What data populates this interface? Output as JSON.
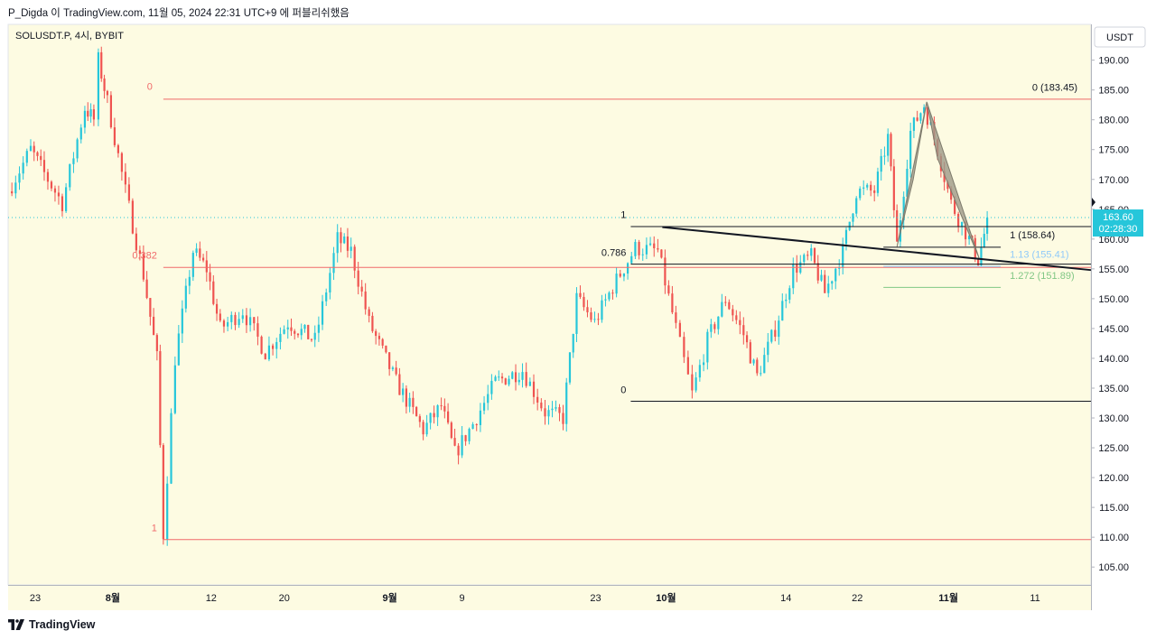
{
  "header": {
    "text": "P_Digda 이 TradingView.com, 11월 05, 2024 22:31 UTC+9 에 퍼블리쉬했음"
  },
  "footer": {
    "brand": "TradingView",
    "logo_icon": "tradingview-logo-icon"
  },
  "colors": {
    "background": "#fdfbe2",
    "up": "#26c6da",
    "down": "#ef5350",
    "fib_red": "#f06a6a",
    "fib_black": "#131722",
    "price_badge": "#26c6da",
    "harmonic_fill": "#9e9a88",
    "blue_fib": "#90caf9",
    "green_fib": "#81c784"
  },
  "chart_data": {
    "type": "candlestick",
    "symbol": "SOLUSDT.P, 4시, BYBIT",
    "currency": "USDT",
    "y_range": [
      102.0,
      196.0
    ],
    "y_ticks": [
      190,
      185,
      180,
      175,
      170,
      165,
      160,
      155,
      150,
      145,
      140,
      135,
      130,
      125,
      120,
      115,
      110,
      105
    ],
    "y_tick_labels": [
      "190.00",
      "185.00",
      "180.00",
      "175.00",
      "170.00",
      "165.00",
      "160.00",
      "155.00",
      "150.00",
      "145.00",
      "140.00",
      "135.00",
      "130.00",
      "125.00",
      "120.00",
      "115.00",
      "110.00",
      "105.00"
    ],
    "x_range": [
      0,
      120
    ],
    "x_ticks": [
      {
        "label": "23",
        "x": 3.0,
        "bold": false
      },
      {
        "label": "8월",
        "x": 11.6,
        "bold": true
      },
      {
        "label": "12",
        "x": 22.5,
        "bold": false
      },
      {
        "label": "20",
        "x": 30.6,
        "bold": false
      },
      {
        "label": "9월",
        "x": 42.3,
        "bold": true
      },
      {
        "label": "9",
        "x": 50.3,
        "bold": false
      },
      {
        "label": "23",
        "x": 65.1,
        "bold": false
      },
      {
        "label": "10월",
        "x": 72.9,
        "bold": true
      },
      {
        "label": "14",
        "x": 86.2,
        "bold": false
      },
      {
        "label": "22",
        "x": 94.1,
        "bold": false
      },
      {
        "label": "11월",
        "x": 104.2,
        "bold": true
      },
      {
        "label": "11",
        "x": 113.8,
        "bold": false
      }
    ],
    "last_price": {
      "value": 163.6,
      "label": "163.60",
      "countdown": "02:28:30"
    },
    "anchors": [
      {
        "x": 0.0,
        "p": 168.0
      },
      {
        "x": 2.5,
        "p": 175.0
      },
      {
        "x": 4.0,
        "p": 171.0
      },
      {
        "x": 6.0,
        "p": 166.0
      },
      {
        "x": 8.5,
        "p": 182.0
      },
      {
        "x": 9.5,
        "p": 180.0
      },
      {
        "x": 10.0,
        "p": 190.0
      },
      {
        "x": 11.0,
        "p": 183.0
      },
      {
        "x": 13.0,
        "p": 168.0
      },
      {
        "x": 15.0,
        "p": 154.0
      },
      {
        "x": 16.5,
        "p": 140.0
      },
      {
        "x": 17.2,
        "p": 110.5
      },
      {
        "x": 18.5,
        "p": 140.0
      },
      {
        "x": 20.5,
        "p": 158.0
      },
      {
        "x": 22.0,
        "p": 155.0
      },
      {
        "x": 23.5,
        "p": 145.0
      },
      {
        "x": 26.0,
        "p": 148.0
      },
      {
        "x": 28.5,
        "p": 141.0
      },
      {
        "x": 31.0,
        "p": 146.0
      },
      {
        "x": 34.0,
        "p": 143.0
      },
      {
        "x": 36.5,
        "p": 160.0
      },
      {
        "x": 38.0,
        "p": 158.0
      },
      {
        "x": 40.0,
        "p": 146.0
      },
      {
        "x": 43.0,
        "p": 136.0
      },
      {
        "x": 46.0,
        "p": 128.0
      },
      {
        "x": 48.0,
        "p": 132.0
      },
      {
        "x": 49.5,
        "p": 124.0
      },
      {
        "x": 51.5,
        "p": 129.0
      },
      {
        "x": 54.0,
        "p": 136.0
      },
      {
        "x": 57.0,
        "p": 138.0
      },
      {
        "x": 59.5,
        "p": 131.0
      },
      {
        "x": 61.5,
        "p": 130.0
      },
      {
        "x": 63.0,
        "p": 150.0
      },
      {
        "x": 65.0,
        "p": 146.0
      },
      {
        "x": 67.0,
        "p": 152.0
      },
      {
        "x": 69.5,
        "p": 158.5
      },
      {
        "x": 72.0,
        "p": 158.0
      },
      {
        "x": 74.0,
        "p": 145.0
      },
      {
        "x": 75.8,
        "p": 134.0
      },
      {
        "x": 77.5,
        "p": 143.0
      },
      {
        "x": 79.5,
        "p": 150.0
      },
      {
        "x": 81.5,
        "p": 144.0
      },
      {
        "x": 83.0,
        "p": 137.0
      },
      {
        "x": 85.0,
        "p": 145.0
      },
      {
        "x": 87.0,
        "p": 155.0
      },
      {
        "x": 89.0,
        "p": 157.0
      },
      {
        "x": 90.5,
        "p": 151.0
      },
      {
        "x": 92.5,
        "p": 158.0
      },
      {
        "x": 94.0,
        "p": 168.0
      },
      {
        "x": 96.0,
        "p": 168.0
      },
      {
        "x": 97.5,
        "p": 177.0
      },
      {
        "x": 98.5,
        "p": 159.0
      },
      {
        "x": 100.0,
        "p": 178.0
      },
      {
        "x": 101.5,
        "p": 182.5
      },
      {
        "x": 103.0,
        "p": 175.0
      },
      {
        "x": 104.5,
        "p": 166.0
      },
      {
        "x": 106.5,
        "p": 160.0
      },
      {
        "x": 107.5,
        "p": 156.5
      },
      {
        "x": 108.5,
        "p": 163.0
      }
    ],
    "horizontal_lines": [
      {
        "name": "fib-left-0-line",
        "price": 183.45,
        "x_start": 17.2,
        "x_end": 120,
        "color": "#f06a6a",
        "width": 1
      },
      {
        "name": "fib-left-0382-line",
        "price": 155.25,
        "x_start": 17.2,
        "x_end": 120,
        "color": "#f06a6a",
        "width": 1
      },
      {
        "name": "fib-left-1-line",
        "price": 109.6,
        "x_start": 17.2,
        "x_end": 120,
        "color": "#f06a6a",
        "width": 1
      },
      {
        "name": "fib-mid-1-line",
        "price": 162.1,
        "x_start": 69.0,
        "x_end": 120,
        "color": "#131722",
        "width": 1
      },
      {
        "name": "fib-mid-0786-line",
        "price": 155.8,
        "x_start": 69.0,
        "x_end": 120,
        "color": "#131722",
        "width": 1
      },
      {
        "name": "fib-mid-0-line",
        "price": 132.8,
        "x_start": 69.0,
        "x_end": 120,
        "color": "#131722",
        "width": 1
      },
      {
        "name": "fib-right-1-line",
        "price": 158.64,
        "x_start": 97.0,
        "x_end": 110.0,
        "color": "#131722",
        "width": 1
      },
      {
        "name": "fib-right-113-line",
        "price": 155.41,
        "x_start": 97.0,
        "x_end": 110.0,
        "color": "#90caf9",
        "width": 1
      },
      {
        "name": "fib-right-1272-line",
        "price": 151.89,
        "x_start": 97.0,
        "x_end": 110.0,
        "color": "#81c784",
        "width": 1
      }
    ],
    "trend_line": {
      "x1": 72.5,
      "p1": 162.0,
      "x2": 120.0,
      "p2": 154.8
    },
    "harmonic": [
      {
        "x": 98.5,
        "p": 158.7
      },
      {
        "x": 100.3,
        "p": 170.0
      },
      {
        "x": 101.8,
        "p": 183.0
      },
      {
        "x": 103.0,
        "p": 173.5
      },
      {
        "x": 107.6,
        "p": 156.8
      }
    ],
    "annotations": [
      {
        "text": "0",
        "x": 16.0,
        "price": 185.0,
        "color": "#f06a6a",
        "anchor": "end"
      },
      {
        "text": "0.382",
        "x": 16.5,
        "price": 156.7,
        "color": "#f06a6a",
        "anchor": "end"
      },
      {
        "text": "1",
        "x": 16.5,
        "price": 111.0,
        "color": "#f06a6a",
        "anchor": "end"
      },
      {
        "text": "1",
        "x": 68.5,
        "price": 163.5,
        "color": "#131722",
        "anchor": "end"
      },
      {
        "text": "0.786",
        "x": 68.5,
        "price": 157.2,
        "color": "#131722",
        "anchor": "end"
      },
      {
        "text": "0",
        "x": 68.5,
        "price": 134.2,
        "color": "#131722",
        "anchor": "end"
      },
      {
        "text": "0 (183.45)",
        "x": 118.5,
        "price": 184.9,
        "color": "#131722",
        "anchor": "end"
      },
      {
        "text": "1 (158.64)",
        "x": 111.0,
        "price": 160.1,
        "color": "#131722",
        "anchor": "start"
      },
      {
        "text": "1.13 (155.41)",
        "x": 111.0,
        "price": 156.9,
        "color": "#90caf9",
        "anchor": "start"
      },
      {
        "text": "1.272 (151.89)",
        "x": 111.0,
        "price": 153.3,
        "color": "#81c784",
        "anchor": "start"
      }
    ]
  }
}
